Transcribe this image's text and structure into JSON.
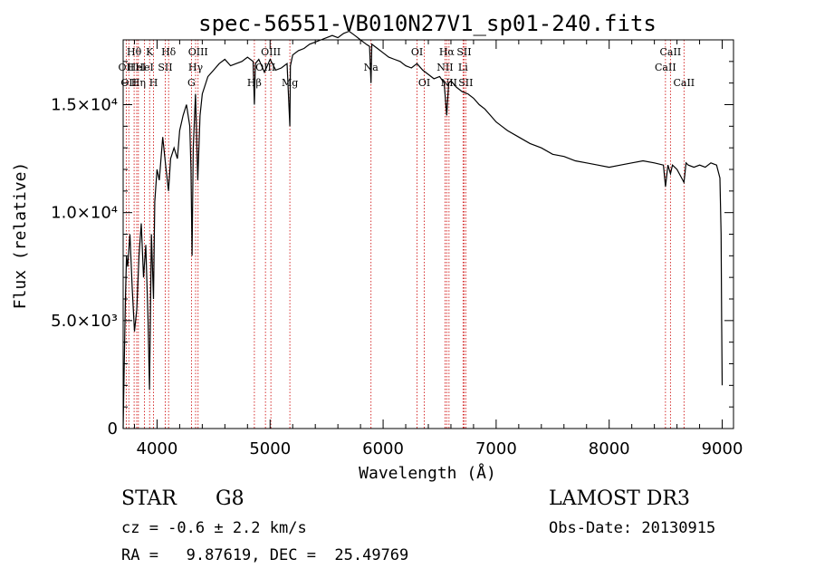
{
  "chart_data": {
    "type": "line",
    "title": "spec-56551-VB010N27V1_sp01-240.fits",
    "xlabel": "Wavelength (Å)",
    "ylabel": "Flux (relative)",
    "xlim": [
      3700,
      9100
    ],
    "ylim": [
      0,
      18000
    ],
    "x_ticks": [
      {
        "value": 4000,
        "label": "4000"
      },
      {
        "value": 5000,
        "label": "5000"
      },
      {
        "value": 6000,
        "label": "6000"
      },
      {
        "value": 7000,
        "label": "7000"
      },
      {
        "value": 8000,
        "label": "8000"
      },
      {
        "value": 9000,
        "label": "9000"
      }
    ],
    "y_ticks": [
      {
        "value": 0,
        "label": "0"
      },
      {
        "value": 5000,
        "label": "5.0×10³"
      },
      {
        "value": 10000,
        "label": "1.0×10⁴"
      },
      {
        "value": 15000,
        "label": "1.5×10⁴"
      }
    ],
    "series": [
      {
        "name": "flux",
        "x": [
          3700,
          3710,
          3720,
          3730,
          3740,
          3760,
          3780,
          3800,
          3820,
          3840,
          3860,
          3880,
          3900,
          3920,
          3933,
          3950,
          3968,
          3980,
          4000,
          4020,
          4050,
          4080,
          4101,
          4120,
          4150,
          4180,
          4200,
          4230,
          4260,
          4290,
          4300,
          4310,
          4320,
          4340,
          4360,
          4380,
          4400,
          4450,
          4500,
          4550,
          4600,
          4650,
          4700,
          4750,
          4800,
          4850,
          4861,
          4870,
          4900,
          4950,
          5000,
          5050,
          5100,
          5150,
          5175,
          5180,
          5200,
          5250,
          5300,
          5350,
          5400,
          5450,
          5500,
          5550,
          5600,
          5650,
          5700,
          5750,
          5800,
          5850,
          5880,
          5893,
          5900,
          5950,
          6000,
          6050,
          6100,
          6150,
          6200,
          6250,
          6300,
          6350,
          6400,
          6450,
          6500,
          6540,
          6563,
          6580,
          6600,
          6650,
          6700,
          6750,
          6800,
          6850,
          6900,
          6950,
          7000,
          7050,
          7100,
          7200,
          7300,
          7400,
          7500,
          7600,
          7700,
          7800,
          7900,
          8000,
          8100,
          8200,
          8300,
          8400,
          8480,
          8498,
          8520,
          8542,
          8560,
          8600,
          8662,
          8680,
          8700,
          8750,
          8800,
          8850,
          8900,
          8950,
          8980,
          8990,
          8995,
          9000
        ],
        "values": [
          0,
          3000,
          6000,
          8000,
          7500,
          9000,
          6500,
          4500,
          5500,
          8000,
          9500,
          7000,
          8500,
          5000,
          1800,
          9000,
          6000,
          10500,
          12000,
          11500,
          13500,
          12000,
          11000,
          12500,
          13000,
          12500,
          13800,
          14500,
          15000,
          14000,
          12000,
          8000,
          13000,
          15500,
          11500,
          14500,
          15500,
          16300,
          16600,
          16900,
          17100,
          16800,
          16900,
          17000,
          17200,
          17000,
          15000,
          16900,
          17100,
          16500,
          17100,
          16600,
          16700,
          16900,
          14000,
          16800,
          17300,
          17500,
          17600,
          17800,
          17900,
          18000,
          18100,
          18200,
          18100,
          18300,
          18400,
          18200,
          18000,
          17800,
          17700,
          16000,
          17800,
          17600,
          17400,
          17200,
          17100,
          17000,
          16800,
          16700,
          16900,
          16600,
          16400,
          16200,
          16300,
          16000,
          14500,
          16000,
          16100,
          15800,
          15600,
          15500,
          15300,
          15000,
          14800,
          14500,
          14200,
          14000,
          13800,
          13500,
          13200,
          13000,
          12700,
          12600,
          12400,
          12300,
          12200,
          12100,
          12200,
          12300,
          12400,
          12300,
          12200,
          11200,
          12200,
          11800,
          12200,
          12000,
          11400,
          12300,
          12200,
          12100,
          12200,
          12100,
          12300,
          12200,
          11600,
          9000,
          5000,
          2000
        ]
      }
    ],
    "line_markers": [
      {
        "wavelength": 3727,
        "label": "OII",
        "row": 2
      },
      {
        "wavelength": 3750,
        "label": "OII",
        "row": 3
      },
      {
        "wavelength": 3797,
        "label": "Hθ",
        "row": 1
      },
      {
        "wavelength": 3820,
        "label": "HeI",
        "row": 2
      },
      {
        "wavelength": 3835,
        "label": "Hη",
        "row": 3
      },
      {
        "wavelength": 3889,
        "label": "HeI",
        "row": 2
      },
      {
        "wavelength": 3934,
        "label": "K",
        "row": 1
      },
      {
        "wavelength": 3969,
        "label": "H",
        "row": 3
      },
      {
        "wavelength": 4072,
        "label": "SII",
        "row": 2
      },
      {
        "wavelength": 4102,
        "label": "Hδ",
        "row": 1
      },
      {
        "wavelength": 4304,
        "label": "G",
        "row": 3
      },
      {
        "wavelength": 4341,
        "label": "Hγ",
        "row": 2
      },
      {
        "wavelength": 4363,
        "label": "OIII",
        "row": 1
      },
      {
        "wavelength": 4861,
        "label": "Hβ",
        "row": 3
      },
      {
        "wavelength": 4959,
        "label": "OIII",
        "row": 2
      },
      {
        "wavelength": 5007,
        "label": "OIII",
        "row": 1
      },
      {
        "wavelength": 5175,
        "label": "Mg",
        "row": 3
      },
      {
        "wavelength": 5893,
        "label": "Na",
        "row": 2
      },
      {
        "wavelength": 6300,
        "label": "OI",
        "row": 1
      },
      {
        "wavelength": 6364,
        "label": "OI",
        "row": 3
      },
      {
        "wavelength": 6548,
        "label": "NII",
        "row": 2
      },
      {
        "wavelength": 6563,
        "label": "Hα",
        "row": 1
      },
      {
        "wavelength": 6583,
        "label": "NII",
        "row": 3
      },
      {
        "wavelength": 6707,
        "label": "Li",
        "row": 2
      },
      {
        "wavelength": 6716,
        "label": "SII",
        "row": 1
      },
      {
        "wavelength": 6731,
        "label": "SII",
        "row": 3
      },
      {
        "wavelength": 8498,
        "label": "CaII",
        "row": 2
      },
      {
        "wavelength": 8542,
        "label": "CaII",
        "row": 1
      },
      {
        "wavelength": 8662,
        "label": "CaII",
        "row": 3
      }
    ]
  },
  "footer": {
    "object_type": "STAR",
    "subclass": "G8",
    "survey": "LAMOST DR3",
    "cz": "cz = -0.6 ± 2.2 km/s",
    "obs_date": "Obs-Date: 20130915",
    "coords": "RA =   9.87619, DEC =  25.49769"
  },
  "colors": {
    "spectrum": "#000000",
    "marker_line": "#cc0000",
    "axes": "#000000"
  }
}
